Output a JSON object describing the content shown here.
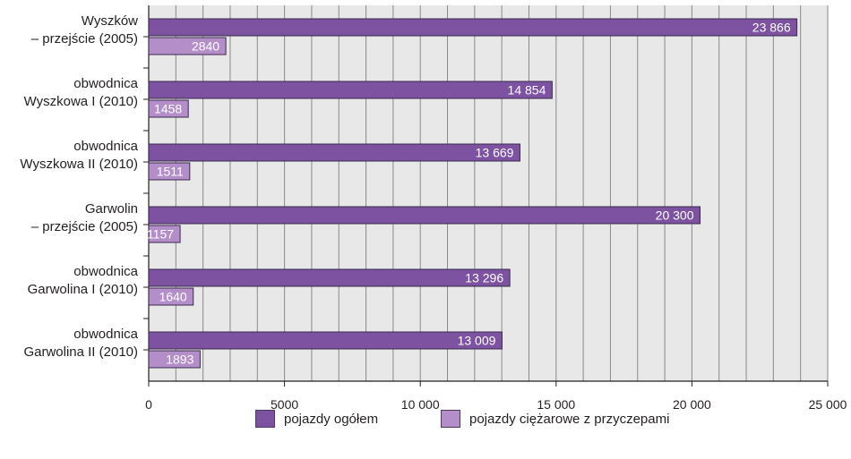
{
  "chart_data": {
    "type": "bar",
    "orientation": "horizontal",
    "categories": [
      [
        "Wyszków",
        "– przejście (2005)"
      ],
      [
        "obwodnica",
        "Wyszkowa I (2010)"
      ],
      [
        "obwodnica",
        "Wyszkowa II (2010)"
      ],
      [
        "Garwolin",
        "– przejście (2005)"
      ],
      [
        "obwodnica",
        "Garwolina I (2010)"
      ],
      [
        "obwodnica",
        "Garwolina II (2010)"
      ]
    ],
    "series": [
      {
        "name": "pojazdy ogółem",
        "values": [
          23866,
          14854,
          13669,
          20300,
          13296,
          13009
        ],
        "labels": [
          "23 866",
          "14 854",
          "13 669",
          "20 300",
          "13 296",
          "13 009"
        ],
        "color": "#7d52a0"
      },
      {
        "name": "pojazdy ciężarowe z przyczepami",
        "values": [
          2840,
          1458,
          1511,
          1157,
          1640,
          1893
        ],
        "labels": [
          "2840",
          "1458",
          "1511",
          "1157",
          "1640",
          "1893"
        ],
        "color": "#b48ec8"
      }
    ],
    "xlim": [
      0,
      25000
    ],
    "xticks": [
      0,
      5000,
      10000,
      15000,
      20000,
      25000
    ],
    "xtick_labels": [
      "0",
      "5000",
      "10 000",
      "15 000",
      "20 000",
      "25 000"
    ],
    "minor_grid_step": 1000,
    "grid": true,
    "legend_position": "bottom"
  },
  "legend": {
    "items": [
      {
        "label": "pojazdy ogółem",
        "color": "#7d52a0"
      },
      {
        "label": "pojazdy ciężarowe z przyczepami",
        "color": "#b48ec8"
      }
    ]
  }
}
